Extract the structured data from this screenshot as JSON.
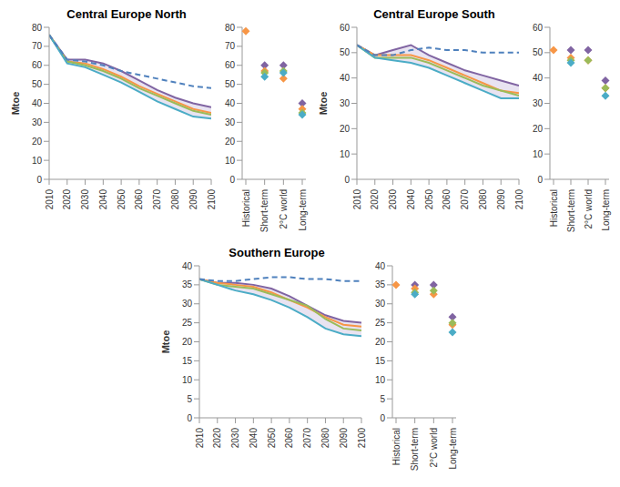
{
  "chart_data": [
    {
      "type": "line",
      "title": "Central Europe North",
      "y_label": "Mtoe",
      "x": [
        2010,
        2020,
        2030,
        2040,
        2050,
        2060,
        2070,
        2080,
        2090,
        2100
      ],
      "xlim": [
        2010,
        2100
      ],
      "xticks": [
        2010,
        2020,
        2030,
        2040,
        2050,
        2060,
        2070,
        2080,
        2090,
        2100
      ],
      "ylim": [
        0,
        80
      ],
      "yticks": [
        0,
        10,
        20,
        30,
        40,
        50,
        60,
        70,
        80
      ],
      "grid": false,
      "series": [
        {
          "color": "#8064a2",
          "line_style": "solid",
          "values": [
            76,
            63,
            63,
            61,
            57,
            52,
            47,
            43,
            40,
            38
          ]
        },
        {
          "color": "#f79646",
          "line_style": "solid",
          "values": [
            76,
            62,
            61,
            58,
            54,
            49,
            45,
            41,
            37,
            35
          ]
        },
        {
          "color": "#9bbb59",
          "line_style": "solid",
          "values": [
            76,
            62,
            60,
            57,
            53,
            48,
            44,
            40,
            36,
            34
          ]
        },
        {
          "color": "#4bacc6",
          "line_style": "solid",
          "values": [
            76,
            61,
            59,
            55,
            51,
            46,
            41,
            37,
            33,
            32
          ]
        },
        {
          "color": "#4f81bd",
          "line_style": "dashed",
          "values": [
            76,
            63,
            62,
            60,
            57,
            55,
            53,
            51,
            49,
            48
          ]
        }
      ]
    },
    {
      "type": "scatter",
      "categories": [
        "Historical",
        "Short-term",
        "2°C world",
        "Long-term"
      ],
      "ylim": [
        0,
        80
      ],
      "yticks": [
        0,
        10,
        20,
        30,
        40,
        50,
        60,
        70,
        80
      ],
      "grid": false,
      "series": [
        {
          "color": "#8064a2",
          "marker": "diamond",
          "values": [
            null,
            60,
            60,
            40
          ]
        },
        {
          "color": "#f79646",
          "marker": "diamond",
          "values": [
            78,
            57,
            53,
            37
          ]
        },
        {
          "color": "#9bbb59",
          "marker": "diamond",
          "values": [
            null,
            56,
            57,
            35
          ]
        },
        {
          "color": "#4bacc6",
          "marker": "diamond",
          "values": [
            null,
            54,
            56,
            34
          ]
        }
      ]
    },
    {
      "type": "line",
      "title": "Central Europe South",
      "y_label": "Mtoe",
      "x": [
        2010,
        2020,
        2030,
        2040,
        2050,
        2060,
        2070,
        2080,
        2090,
        2100
      ],
      "xlim": [
        2010,
        2100
      ],
      "xticks": [
        2010,
        2020,
        2030,
        2040,
        2050,
        2060,
        2070,
        2080,
        2090,
        2100
      ],
      "ylim": [
        0,
        60
      ],
      "yticks": [
        0,
        10,
        20,
        30,
        40,
        50,
        60
      ],
      "grid": false,
      "series": [
        {
          "color": "#8064a2",
          "line_style": "solid",
          "values": [
            53,
            49,
            51,
            53,
            49,
            46,
            43,
            41,
            39,
            37
          ]
        },
        {
          "color": "#f79646",
          "line_style": "solid",
          "values": [
            53,
            49,
            49,
            49,
            47,
            44,
            41,
            38,
            35,
            34
          ]
        },
        {
          "color": "#9bbb59",
          "line_style": "solid",
          "values": [
            53,
            48,
            48,
            48,
            46,
            43,
            40,
            37,
            35,
            33
          ]
        },
        {
          "color": "#4bacc6",
          "line_style": "solid",
          "values": [
            53,
            48,
            47,
            46,
            44,
            41,
            38,
            35,
            32,
            32
          ]
        },
        {
          "color": "#4f81bd",
          "line_style": "dashed",
          "values": [
            53,
            49,
            49,
            51,
            52,
            51,
            51,
            50,
            50,
            50
          ]
        }
      ]
    },
    {
      "type": "scatter",
      "categories": [
        "Historical",
        "Short-term",
        "2°C world",
        "Long-term"
      ],
      "ylim": [
        0,
        60
      ],
      "yticks": [
        0,
        10,
        20,
        30,
        40,
        50,
        60
      ],
      "grid": false,
      "series": [
        {
          "color": "#8064a2",
          "marker": "diamond",
          "values": [
            null,
            51,
            51,
            39
          ]
        },
        {
          "color": "#f79646",
          "marker": "diamond",
          "values": [
            51,
            48,
            47,
            36
          ]
        },
        {
          "color": "#9bbb59",
          "marker": "diamond",
          "values": [
            null,
            47,
            47,
            36
          ]
        },
        {
          "color": "#4bacc6",
          "marker": "diamond",
          "values": [
            null,
            46,
            null,
            33
          ]
        }
      ]
    },
    {
      "type": "line",
      "title": "Southern Europe",
      "y_label": "Mtoe",
      "x": [
        2010,
        2020,
        2030,
        2040,
        2050,
        2060,
        2070,
        2080,
        2090,
        2100
      ],
      "xlim": [
        2010,
        2100
      ],
      "xticks": [
        2010,
        2020,
        2030,
        2040,
        2050,
        2060,
        2070,
        2080,
        2090,
        2100
      ],
      "ylim": [
        0,
        40
      ],
      "yticks": [
        0,
        5,
        10,
        15,
        20,
        25,
        30,
        35,
        40
      ],
      "grid": false,
      "series": [
        {
          "color": "#8064a2",
          "line_style": "solid",
          "values": [
            36.5,
            35.5,
            35.5,
            35,
            34,
            32,
            29.5,
            27,
            25.5,
            25
          ]
        },
        {
          "color": "#f79646",
          "line_style": "solid",
          "values": [
            36.5,
            35.5,
            35,
            34.5,
            33,
            31,
            29,
            26.5,
            24.5,
            24
          ]
        },
        {
          "color": "#9bbb59",
          "line_style": "solid",
          "values": [
            36.5,
            35,
            34.5,
            34,
            32.5,
            31,
            29.5,
            26,
            23.5,
            23
          ]
        },
        {
          "color": "#4bacc6",
          "line_style": "solid",
          "values": [
            36.5,
            35,
            33.5,
            32.5,
            31,
            29,
            26.5,
            23.5,
            22,
            21.5
          ]
        },
        {
          "color": "#4f81bd",
          "line_style": "dashed",
          "values": [
            36.5,
            36,
            36,
            36.5,
            37,
            37,
            36.5,
            36.5,
            36,
            36
          ]
        }
      ]
    },
    {
      "type": "scatter",
      "categories": [
        "Historical",
        "Short-term",
        "2°C world",
        "Long-term"
      ],
      "ylim": [
        0,
        40
      ],
      "yticks": [
        0,
        5,
        10,
        15,
        20,
        25,
        30,
        35,
        40
      ],
      "grid": false,
      "series": [
        {
          "color": "#8064a2",
          "marker": "diamond",
          "values": [
            null,
            35,
            35,
            26.5
          ]
        },
        {
          "color": "#f79646",
          "marker": "diamond",
          "values": [
            35,
            34,
            32.5,
            24.5
          ]
        },
        {
          "color": "#9bbb59",
          "marker": "diamond",
          "values": [
            null,
            33,
            33.5,
            25
          ]
        },
        {
          "color": "#4bacc6",
          "marker": "diamond",
          "values": [
            null,
            32.5,
            null,
            22.5
          ]
        }
      ]
    }
  ]
}
